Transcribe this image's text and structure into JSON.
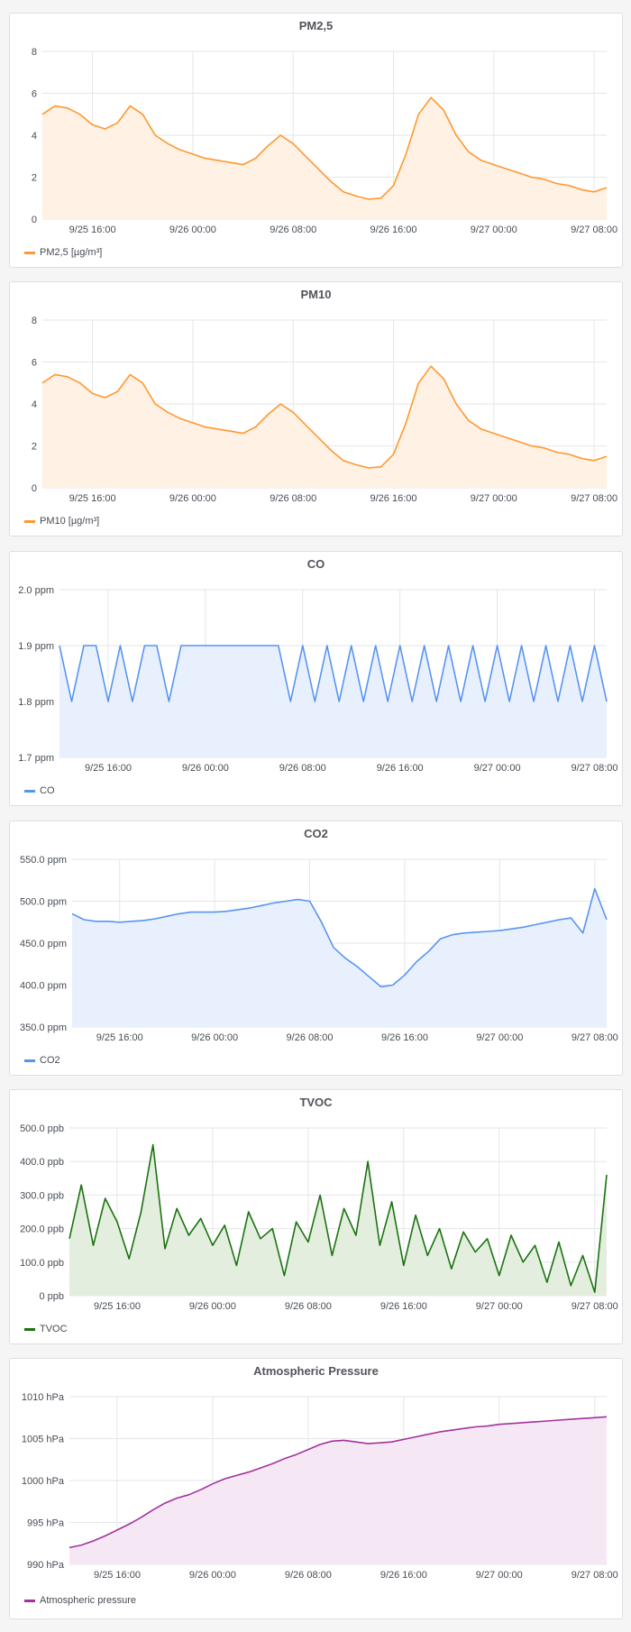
{
  "chart_data": [
    {
      "id": "pm25",
      "type": "line",
      "title": "PM2,5",
      "color": "#ff9830",
      "fill": "#fff1e3",
      "ylim": [
        0,
        8
      ],
      "yticks": [
        "0",
        "2",
        "4",
        "6",
        "8"
      ],
      "xlim": [
        12,
        57
      ],
      "xticks": [
        "9/25 16:00",
        "9/26 00:00",
        "9/26 08:00",
        "9/26 16:00",
        "9/27 00:00",
        "9/27 08:00"
      ],
      "series": [
        {
          "name": "PM2,5 [µg/m³]",
          "x": [
            12,
            13,
            14,
            15,
            16,
            17,
            18,
            19,
            20,
            21,
            22,
            23,
            24,
            25,
            26,
            27,
            28,
            29,
            30,
            31,
            32,
            33,
            34,
            35,
            36,
            37,
            38,
            39,
            40,
            41,
            42,
            43,
            44,
            45,
            46,
            47,
            48,
            49,
            50,
            51,
            52,
            53,
            54,
            55,
            56,
            57
          ],
          "values": [
            5.0,
            5.4,
            5.3,
            5.0,
            4.5,
            4.3,
            4.6,
            5.4,
            5.0,
            4.0,
            3.6,
            3.3,
            3.1,
            2.9,
            2.8,
            2.7,
            2.6,
            2.9,
            3.5,
            4.0,
            3.6,
            3.0,
            2.4,
            1.8,
            1.3,
            1.1,
            0.95,
            1.0,
            1.6,
            3.1,
            5.0,
            5.8,
            5.2,
            4.0,
            3.2,
            2.8,
            2.6,
            2.4,
            2.2,
            2.0,
            1.9,
            1.7,
            1.6,
            1.4,
            1.3,
            1.5
          ]
        }
      ]
    },
    {
      "id": "pm10",
      "type": "line",
      "title": "PM10",
      "color": "#ff9830",
      "fill": "#fff1e3",
      "ylim": [
        0,
        8
      ],
      "yticks": [
        "0",
        "2",
        "4",
        "6",
        "8"
      ],
      "xlim": [
        12,
        57
      ],
      "xticks": [
        "9/25 16:00",
        "9/26 00:00",
        "9/26 08:00",
        "9/26 16:00",
        "9/27 00:00",
        "9/27 08:00"
      ],
      "series": [
        {
          "name": "PM10 [µg/m³]",
          "x": [
            12,
            13,
            14,
            15,
            16,
            17,
            18,
            19,
            20,
            21,
            22,
            23,
            24,
            25,
            26,
            27,
            28,
            29,
            30,
            31,
            32,
            33,
            34,
            35,
            36,
            37,
            38,
            39,
            40,
            41,
            42,
            43,
            44,
            45,
            46,
            47,
            48,
            49,
            50,
            51,
            52,
            53,
            54,
            55,
            56,
            57
          ],
          "values": [
            5.0,
            5.4,
            5.3,
            5.0,
            4.5,
            4.3,
            4.6,
            5.4,
            5.0,
            4.0,
            3.6,
            3.3,
            3.1,
            2.9,
            2.8,
            2.7,
            2.6,
            2.9,
            3.5,
            4.0,
            3.6,
            3.0,
            2.4,
            1.8,
            1.3,
            1.1,
            0.95,
            1.0,
            1.6,
            3.1,
            5.0,
            5.8,
            5.2,
            4.0,
            3.2,
            2.8,
            2.6,
            2.4,
            2.2,
            2.0,
            1.9,
            1.7,
            1.6,
            1.4,
            1.3,
            1.5
          ]
        }
      ]
    },
    {
      "id": "co",
      "type": "line",
      "title": "CO",
      "color": "#5794f2",
      "fill": "#e9f0fd",
      "ylim": [
        1.7,
        2.0
      ],
      "yticks": [
        "1.7 ppm",
        "1.8 ppm",
        "1.9 ppm",
        "2.0 ppm"
      ],
      "xlim": [
        12,
        57
      ],
      "xticks": [
        "9/25 16:00",
        "9/26 00:00",
        "9/26 08:00",
        "9/26 16:00",
        "9/27 00:00",
        "9/27 08:00"
      ],
      "series": [
        {
          "name": "CO",
          "x": [
            12,
            13,
            14,
            15,
            16,
            17,
            18,
            19,
            20,
            21,
            22,
            23,
            24,
            25,
            26,
            27,
            28,
            29,
            30,
            31,
            32,
            33,
            34,
            35,
            36,
            37,
            38,
            39,
            40,
            41,
            42,
            43,
            44,
            45,
            46,
            47,
            48,
            49,
            50,
            51,
            52,
            53,
            54,
            55,
            56,
            57
          ],
          "values": [
            1.9,
            1.8,
            1.9,
            1.9,
            1.8,
            1.9,
            1.8,
            1.9,
            1.9,
            1.8,
            1.9,
            1.9,
            1.9,
            1.9,
            1.9,
            1.9,
            1.9,
            1.9,
            1.9,
            1.8,
            1.9,
            1.8,
            1.9,
            1.8,
            1.9,
            1.8,
            1.9,
            1.8,
            1.9,
            1.8,
            1.9,
            1.8,
            1.9,
            1.8,
            1.9,
            1.8,
            1.9,
            1.8,
            1.9,
            1.8,
            1.9,
            1.8,
            1.9,
            1.8,
            1.9,
            1.8
          ]
        }
      ]
    },
    {
      "id": "co2",
      "type": "line",
      "title": "CO2",
      "color": "#5794f2",
      "fill": "#e9f0fd",
      "ylim": [
        350,
        550
      ],
      "yticks": [
        "350.0 ppm",
        "400.0 ppm",
        "450.0 ppm",
        "500.0 ppm",
        "550.0 ppm"
      ],
      "xlim": [
        12,
        57
      ],
      "xticks": [
        "9/25 16:00",
        "9/26 00:00",
        "9/26 08:00",
        "9/26 16:00",
        "9/27 00:00",
        "9/27 08:00"
      ],
      "series": [
        {
          "name": "CO2",
          "x": [
            12,
            13,
            14,
            15,
            16,
            17,
            18,
            19,
            20,
            21,
            22,
            23,
            24,
            25,
            26,
            27,
            28,
            29,
            30,
            31,
            32,
            33,
            34,
            35,
            36,
            37,
            38,
            39,
            40,
            41,
            42,
            43,
            44,
            45,
            46,
            47,
            48,
            49,
            50,
            51,
            52,
            53,
            54,
            55,
            56,
            57
          ],
          "values": [
            485,
            478,
            476,
            476,
            475,
            476,
            477,
            479,
            482,
            485,
            487,
            487,
            487,
            488,
            490,
            492,
            495,
            498,
            500,
            502,
            500,
            475,
            445,
            432,
            422,
            410,
            398,
            400,
            412,
            428,
            440,
            455,
            460,
            462,
            463,
            464,
            465,
            467,
            469,
            472,
            475,
            478,
            480,
            462,
            515,
            478
          ]
        }
      ]
    },
    {
      "id": "tvoc",
      "type": "line",
      "title": "TVOC",
      "color": "#19730e",
      "fill": "#e4eedf",
      "ylim": [
        0,
        500
      ],
      "yticks": [
        "0 ppb",
        "100.0 ppb",
        "200.0 ppb",
        "300.0 ppb",
        "400.0 ppb",
        "500.0 ppb"
      ],
      "xlim": [
        12,
        57
      ],
      "xticks": [
        "9/25 16:00",
        "9/26 00:00",
        "9/26 08:00",
        "9/26 16:00",
        "9/27 00:00",
        "9/27 08:00"
      ],
      "series": [
        {
          "name": "TVOC",
          "x": [
            12,
            13,
            14,
            15,
            16,
            17,
            18,
            19,
            20,
            21,
            22,
            23,
            24,
            25,
            26,
            27,
            28,
            29,
            30,
            31,
            32,
            33,
            34,
            35,
            36,
            37,
            38,
            39,
            40,
            41,
            42,
            43,
            44,
            45,
            46,
            47,
            48,
            49,
            50,
            51,
            52,
            53,
            54,
            55,
            56,
            57
          ],
          "values": [
            170,
            330,
            150,
            290,
            220,
            110,
            250,
            450,
            140,
            260,
            180,
            230,
            150,
            210,
            90,
            250,
            170,
            200,
            60,
            220,
            160,
            300,
            120,
            260,
            180,
            400,
            150,
            280,
            90,
            240,
            120,
            200,
            80,
            190,
            130,
            170,
            60,
            180,
            100,
            150,
            40,
            160,
            30,
            120,
            10,
            360
          ]
        }
      ]
    },
    {
      "id": "pressure",
      "type": "line",
      "title": "Atmospheric Pressure",
      "color": "#a3329e",
      "fill": "#f5e8f4",
      "ylim": [
        990,
        1010
      ],
      "yticks": [
        "990 hPa",
        "995 hPa",
        "1000 hPa",
        "1005 hPa",
        "1010 hPa"
      ],
      "xlim": [
        12,
        57
      ],
      "xticks": [
        "9/25 16:00",
        "9/26 00:00",
        "9/26 08:00",
        "9/26 16:00",
        "9/27 00:00",
        "9/27 08:00"
      ],
      "series": [
        {
          "name": "Atmospheric pressure",
          "x": [
            12,
            13,
            14,
            15,
            16,
            17,
            18,
            19,
            20,
            21,
            22,
            23,
            24,
            25,
            26,
            27,
            28,
            29,
            30,
            31,
            32,
            33,
            34,
            35,
            36,
            37,
            38,
            39,
            40,
            41,
            42,
            43,
            44,
            45,
            46,
            47,
            48,
            49,
            50,
            51,
            52,
            53,
            54,
            55,
            56,
            57
          ],
          "values": [
            992.0,
            992.3,
            992.8,
            993.4,
            994.1,
            994.8,
            995.6,
            996.5,
            997.3,
            997.9,
            998.3,
            998.9,
            999.6,
            1000.2,
            1000.6,
            1001.0,
            1001.5,
            1002.0,
            1002.6,
            1003.1,
            1003.7,
            1004.3,
            1004.7,
            1004.8,
            1004.6,
            1004.4,
            1004.5,
            1004.6,
            1004.9,
            1005.2,
            1005.5,
            1005.8,
            1006.0,
            1006.2,
            1006.4,
            1006.5,
            1006.7,
            1006.8,
            1006.9,
            1007.0,
            1007.1,
            1007.2,
            1007.3,
            1007.4,
            1007.5,
            1007.6
          ]
        }
      ]
    }
  ]
}
